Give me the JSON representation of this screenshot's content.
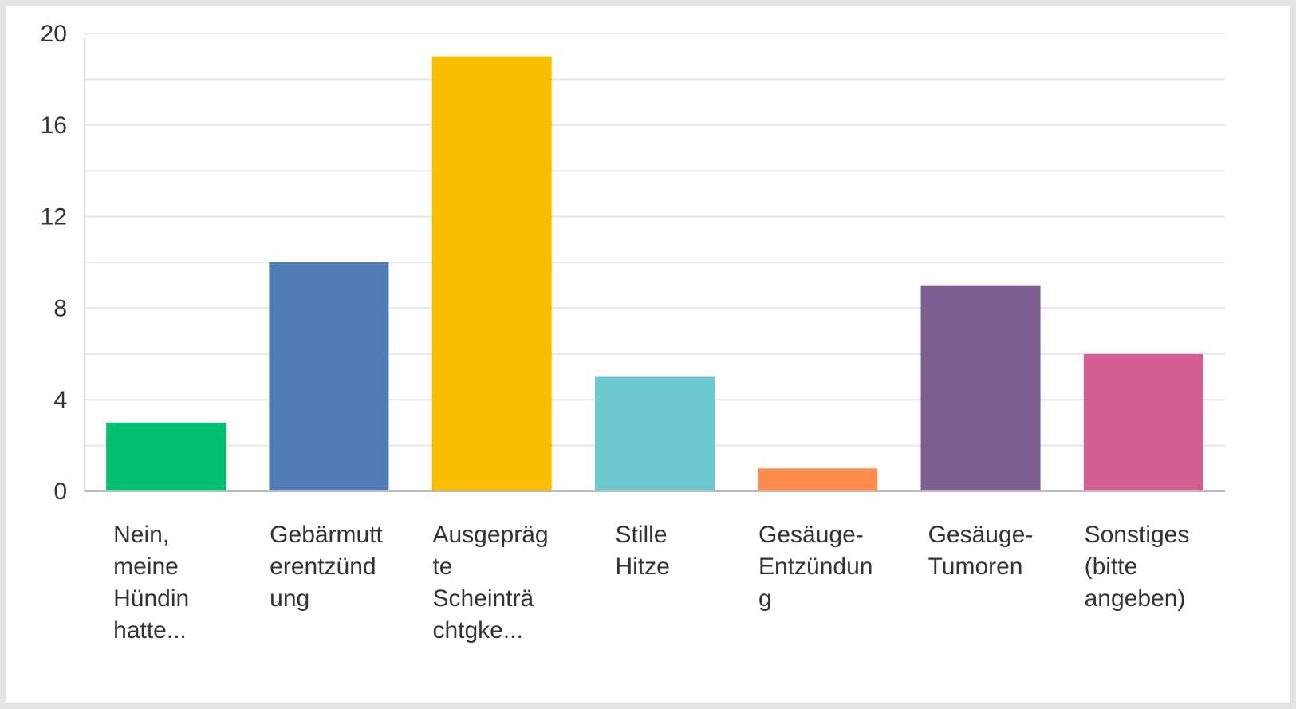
{
  "chart_data": {
    "type": "bar",
    "title": "",
    "xlabel": "",
    "ylabel": "",
    "ylim": [
      0,
      20
    ],
    "yticks": [
      0,
      4,
      8,
      12,
      16,
      20
    ],
    "grid": true,
    "categories": [
      [
        "Nein,",
        "meine",
        "Hündin",
        "hatte..."
      ],
      [
        "Gebärmutt",
        "erentzünd",
        "ung"
      ],
      [
        "Ausgepräg",
        "te",
        "Scheinträ",
        "chtgke..."
      ],
      [
        "Stille",
        "Hitze"
      ],
      [
        "Gesäuge-",
        "Entzündun",
        "g"
      ],
      [
        "Gesäuge-",
        "Tumoren"
      ],
      [
        "Sonstiges",
        "(bitte",
        "angeben)"
      ]
    ],
    "values": [
      3,
      10,
      19,
      5,
      1,
      9,
      6
    ],
    "colors": [
      "#00bf6f",
      "#507cb6",
      "#f9be00",
      "#6bc8cd",
      "#ff8b4f",
      "#7d5e90",
      "#d25f90"
    ]
  }
}
